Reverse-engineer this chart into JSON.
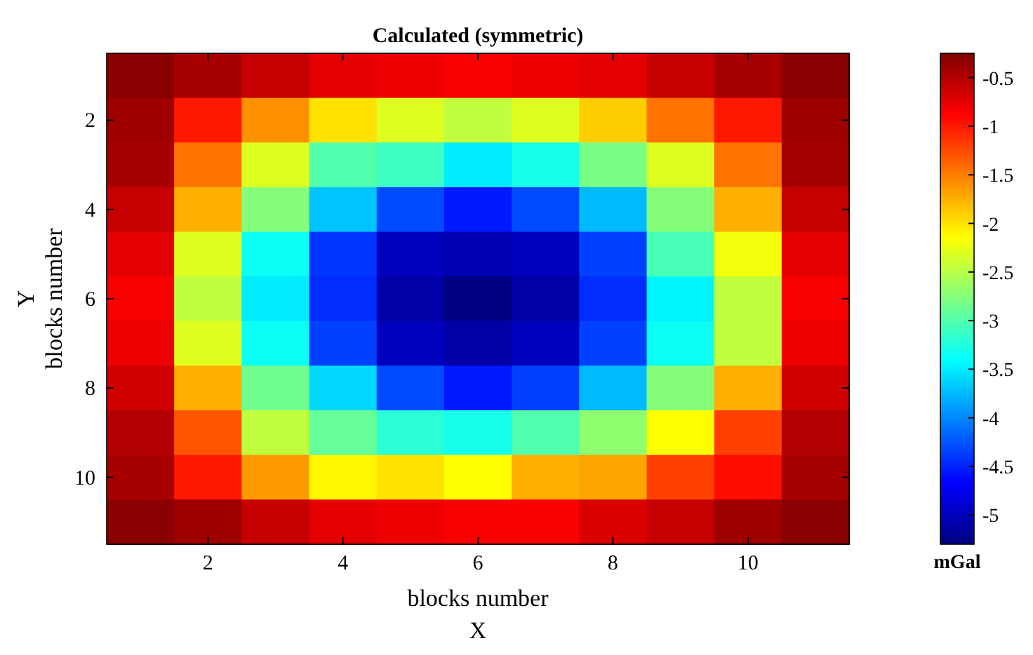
{
  "chart_data": {
    "type": "heatmap",
    "title": "Calculated (symmetric)",
    "xlabel": "blocks number\nX",
    "ylabel": "Y\nblocks number",
    "clabel": "mGal",
    "categories": [
      null,
      "2",
      null,
      "4",
      null,
      "6",
      null,
      "8",
      null,
      "10",
      null
    ],
    "y_categories": [
      null,
      "2",
      null,
      "4",
      null,
      "6",
      null,
      "8",
      null,
      "10",
      null
    ],
    "clim": [
      -5.3,
      -0.25
    ],
    "cticks": [
      -5,
      -4.5,
      -4,
      -3.5,
      -3,
      -2.5,
      -2,
      -1.5,
      -1,
      -0.5
    ],
    "cells": [
      [
        -0.3,
        -0.45,
        -0.6,
        -0.75,
        -0.8,
        -0.85,
        -0.8,
        -0.75,
        -0.6,
        -0.45,
        -0.3
      ],
      [
        -0.4,
        -1.0,
        -1.6,
        -2.0,
        -2.3,
        -2.45,
        -2.3,
        -1.9,
        -1.45,
        -1.0,
        -0.4
      ],
      [
        -0.45,
        -1.45,
        -2.3,
        -3.0,
        -3.1,
        -3.5,
        -3.3,
        -2.8,
        -2.3,
        -1.45,
        -0.45
      ],
      [
        -0.6,
        -1.75,
        -2.75,
        -3.7,
        -4.3,
        -4.55,
        -4.3,
        -3.75,
        -2.75,
        -1.75,
        -0.6
      ],
      [
        -0.75,
        -2.3,
        -3.35,
        -4.4,
        -5.0,
        -5.05,
        -5.0,
        -4.35,
        -3.05,
        -2.2,
        -0.75
      ],
      [
        -0.85,
        -2.45,
        -3.5,
        -4.45,
        -5.1,
        -5.3,
        -5.1,
        -4.45,
        -3.45,
        -2.45,
        -0.85
      ],
      [
        -0.8,
        -2.3,
        -3.35,
        -4.35,
        -5.0,
        -5.1,
        -5.0,
        -4.35,
        -3.35,
        -2.45,
        -0.8
      ],
      [
        -0.65,
        -1.75,
        -2.85,
        -3.6,
        -4.3,
        -4.55,
        -4.35,
        -3.75,
        -2.75,
        -1.75,
        -0.65
      ],
      [
        -0.5,
        -1.3,
        -2.45,
        -2.9,
        -3.2,
        -3.3,
        -3.0,
        -2.7,
        -2.15,
        -1.2,
        -0.5
      ],
      [
        -0.45,
        -1.0,
        -1.65,
        -2.1,
        -2.0,
        -2.15,
        -1.75,
        -1.7,
        -1.2,
        -0.95,
        -0.45
      ],
      [
        -0.3,
        -0.4,
        -0.6,
        -0.75,
        -0.8,
        -0.85,
        -0.85,
        -0.7,
        -0.6,
        -0.4,
        -0.3
      ]
    ]
  }
}
